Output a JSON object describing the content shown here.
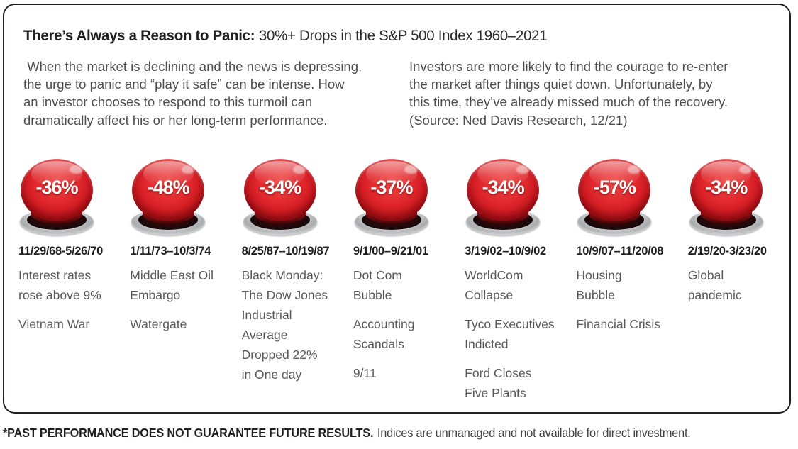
{
  "title": {
    "emphasis": "There’s Always a Reason to Panic:",
    "subtitle": "30%+ Drops in the S&P 500 Index 1960–2021"
  },
  "intro": {
    "left": " When the market is declining and the news is depressing,\nthe urge to panic and “play it safe” can be intense. How\nan investor chooses to respond to this turmoil can\ndramatically affect his or her long-term performance.",
    "right": "Investors are more likely to find the courage to re-enter\nthe market after things quiet down. Unfortunately, by\nthis time, they’ve already missed much of the recovery.\n(Source: Ned Davis Research, 12/21)"
  },
  "events": [
    {
      "drop": "-36%",
      "dates": "11/29/68-5/26/70",
      "items": [
        "Interest rates\nrose above 9%",
        "Vietnam War"
      ]
    },
    {
      "drop": "-48%",
      "dates": "1/11/73–10/3/74",
      "items": [
        "Middle East Oil\nEmbargo",
        "Watergate"
      ]
    },
    {
      "drop": "-34%",
      "dates": "8/25/87–10/19/87",
      "items": [
        "Black Monday:\nThe Dow Jones\nIndustrial\nAverage\nDropped 22%\nin One day"
      ]
    },
    {
      "drop": "-37%",
      "dates": "9/1/00–9/21/01",
      "items": [
        "Dot Com\nBubble",
        "Accounting\nScandals",
        "9/11"
      ]
    },
    {
      "drop": "-34%",
      "dates": "3/19/02–10/9/02",
      "items": [
        "WorldCom\nCollapse",
        "Tyco Executives\nIndicted",
        "Ford Closes\nFive Plants"
      ]
    },
    {
      "drop": "-57%",
      "dates": "10/9/07–11/20/08",
      "items": [
        "Housing\nBubble",
        "Financial Crisis"
      ]
    },
    {
      "drop": "-34%",
      "dates": "2/19/20-3/23/20",
      "items": [
        "Global\npandemic"
      ]
    }
  ],
  "footer": {
    "emphasis": "*PAST PERFORMANCE DOES NOT GUARANTEE FUTURE RESULTS.",
    "text": "Indices are unmanaged and not available for direct investment."
  },
  "colors": {
    "button_red": "#d92128",
    "button_base_silver": "#c7c8ca",
    "text_dark": "#231f20",
    "text_gray": "#59595b"
  }
}
